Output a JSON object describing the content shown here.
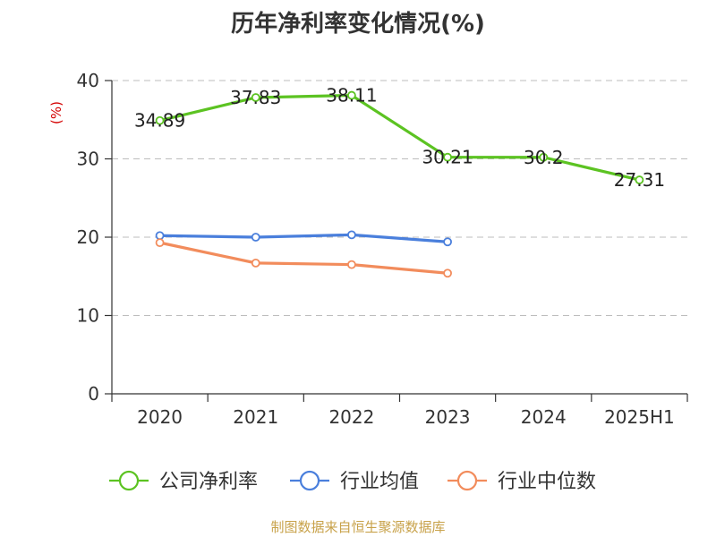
{
  "chart_data": {
    "type": "line",
    "title": "历年净利率变化情况(%)",
    "ylabel": "(%)",
    "categories": [
      "2020",
      "2021",
      "2022",
      "2023",
      "2024",
      "2025H1"
    ],
    "ylim": [
      0,
      40
    ],
    "yticks": [
      "0",
      "10",
      "20",
      "30",
      "40"
    ],
    "grid": true,
    "legend_position": "bottom",
    "series": [
      {
        "name": "公司净利率",
        "color": "#5cc322",
        "values": [
          34.89,
          37.83,
          38.11,
          30.21,
          30.2,
          27.31
        ],
        "labels": [
          "34.89",
          "37.83",
          "38.11",
          "30.21",
          "30.2",
          "27.31"
        ]
      },
      {
        "name": "行业均值",
        "color": "#4a7fdc",
        "values": [
          20.2,
          20.0,
          20.3,
          19.4,
          null,
          null
        ]
      },
      {
        "name": "行业中位数",
        "color": "#f28c5c",
        "values": [
          19.3,
          16.7,
          16.5,
          15.4,
          null,
          null
        ]
      }
    ]
  },
  "source": "制图数据来自恒生聚源数据库"
}
